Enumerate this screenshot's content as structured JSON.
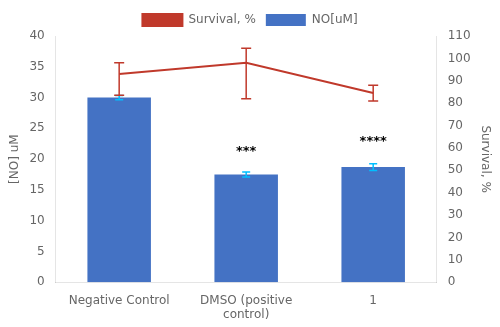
{
  "chart_data": {
    "type": "bar",
    "categories": [
      "Negative Control",
      "DMSO (positive\ncontrol)",
      "1"
    ],
    "series": [
      {
        "name": "NO[uM]",
        "type": "bar",
        "color": "#4472C4",
        "error_color": "#00BFFF",
        "values": [
          30.0,
          17.5,
          18.7
        ],
        "errors": [
          0.35,
          0.4,
          0.55
        ]
      },
      {
        "name": "Survival, %",
        "type": "line",
        "axis": "y2",
        "color": "#C0392B",
        "values": [
          93.0,
          98.0,
          84.5
        ],
        "errors_upper": [
          5.0,
          6.5,
          3.5
        ],
        "errors_lower": [
          9.5,
          16.0,
          3.5
        ]
      }
    ],
    "ylabel": "[NO] uM",
    "y2label": "Survival, %",
    "ylim": [
      0,
      40
    ],
    "yticks": [
      0,
      5,
      10,
      15,
      20,
      25,
      30,
      35,
      40
    ],
    "y2lim": [
      0,
      110
    ],
    "y2ticks": [
      0,
      10,
      20,
      30,
      40,
      50,
      60,
      70,
      80,
      90,
      100,
      110
    ],
    "annotations": [
      {
        "category": "DMSO (positive\ncontrol)",
        "text": "***",
        "y": 20.2
      },
      {
        "category": "1",
        "text": "****",
        "y": 21.8
      }
    ],
    "grid": false,
    "legend": "top"
  }
}
